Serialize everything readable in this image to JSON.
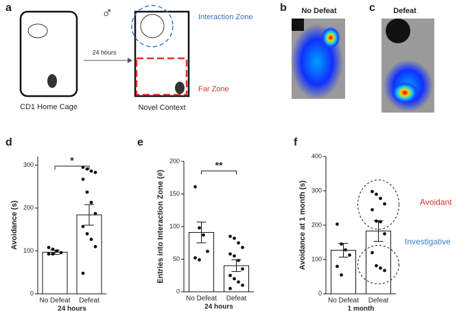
{
  "figure": {
    "panel_labels": [
      "a",
      "b",
      "c",
      "d",
      "e",
      "f"
    ],
    "male_symbol": "♂",
    "home_cage": "CD1 Home Cage",
    "delay": "24 hours",
    "novel_context": "Novel Context",
    "interaction_zone": "Interaction Zone",
    "far_zone": "Far Zone",
    "heatmap_titles": [
      "No Defeat",
      "Defeat"
    ]
  },
  "chart_data": [
    {
      "type": "bar",
      "categories": [
        "No Defeat",
        "Defeat"
      ],
      "xlabel": "24 hours",
      "ylabel": "Avoidance (s)",
      "values": [
        97,
        184
      ],
      "errors": [
        5,
        24
      ],
      "points": [
        [
          108,
          104,
          100,
          96,
          93,
          93
        ],
        [
          295,
          291,
          286,
          283,
          267,
          237,
          213,
          187,
          157,
          140,
          127,
          110,
          48
        ]
      ],
      "annotation": "*",
      "ylim": [
        0,
        320
      ],
      "yticks": [
        0,
        100,
        200,
        300
      ],
      "color": "#ffffff"
    },
    {
      "type": "bar",
      "categories": [
        "No Defeat",
        "Defeat"
      ],
      "xlabel": "24 hours",
      "ylabel": "Entries into Interaction Zone (#)",
      "values": [
        91,
        40
      ],
      "errors": [
        16,
        9
      ],
      "points": [
        [
          161,
          98,
          87,
          62,
          52,
          49
        ],
        [
          85,
          82,
          75,
          68,
          58,
          55,
          48,
          35,
          25,
          20,
          15,
          10,
          5
        ]
      ],
      "annotation": "**",
      "ylim": [
        0,
        200
      ],
      "yticks": [
        0,
        50,
        100,
        150,
        200
      ],
      "color": "#ffffff"
    },
    {
      "type": "bar",
      "categories": [
        "No Defeat",
        "Defeat"
      ],
      "xlabel": "1 month",
      "ylabel": "Avoidance at 1 month (s)",
      "values": [
        127,
        183
      ],
      "errors": [
        20,
        30
      ],
      "points": [
        [
          203,
          145,
          128,
          113,
          80,
          55
        ],
        [
          298,
          290,
          278,
          262,
          245,
          212,
          210,
          175,
          120,
          82,
          75,
          68
        ]
      ],
      "group_labels": [
        "Avoidant",
        "Investigative"
      ],
      "ylim": [
        0,
        400
      ],
      "yticks": [
        0,
        100,
        200,
        300,
        400
      ],
      "color": "#ffffff"
    }
  ]
}
